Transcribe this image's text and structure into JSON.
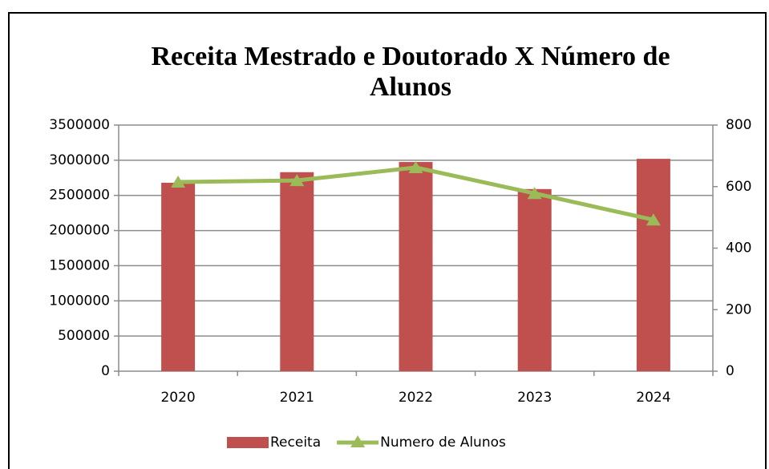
{
  "chart_data": {
    "type": "bar-line",
    "title": "Receita Mestrado e Doutorado X Número de Alunos",
    "categories": [
      "2020",
      "2021",
      "2022",
      "2023",
      "2024"
    ],
    "series": [
      {
        "name": "Receita",
        "color": "#c0504d",
        "type": "bar",
        "values": [
          2680000,
          2830000,
          2975000,
          2590000,
          3020000
        ]
      },
      {
        "name": "Numero de Alunos",
        "color": "#9bbb59",
        "type": "line",
        "axis": "y2",
        "values": [
          615,
          620,
          662,
          578,
          492
        ]
      }
    ],
    "ylim": [
      0,
      3500000
    ],
    "yticks": [
      0,
      500000,
      1000000,
      1500000,
      2000000,
      2500000,
      3000000,
      3500000
    ],
    "y2lim": [
      0,
      800
    ],
    "y2ticks": [
      0,
      200,
      400,
      600,
      800
    ],
    "grid": true,
    "legend": "bottom"
  }
}
